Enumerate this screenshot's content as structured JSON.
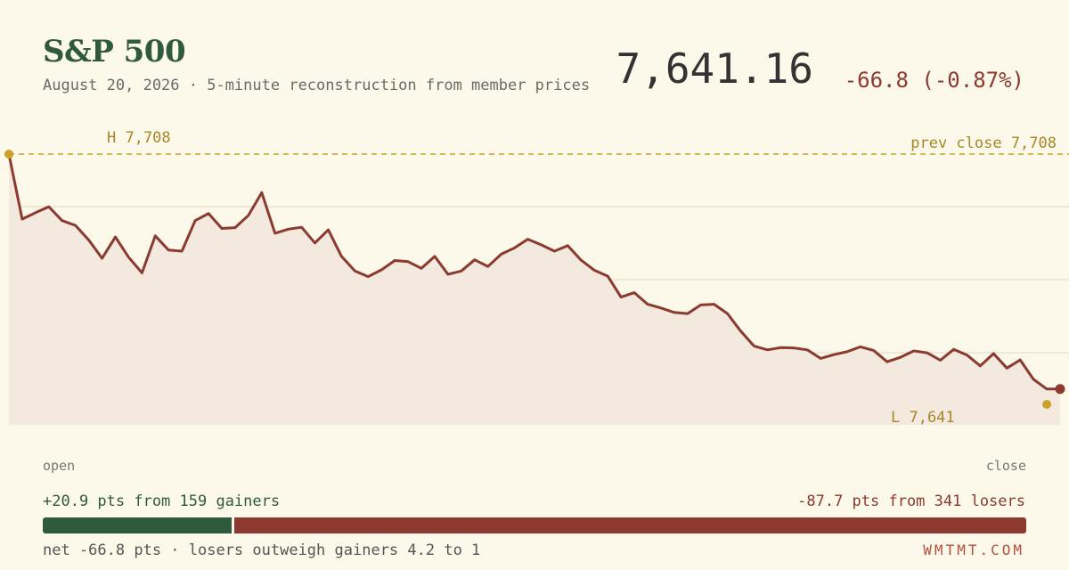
{
  "header": {
    "title": "S&P 500",
    "subtitle": "August 20, 2026 · 5-minute reconstruction from member prices",
    "price": "7,641.16",
    "change": "-66.8 (-0.87%)"
  },
  "chart_data": {
    "type": "line",
    "ylim": [
      7641,
      7708
    ],
    "high_label": "H 7,708",
    "low_label": "L 7,641",
    "prev_close_label": "prev close 7,708",
    "prev_close": 7708,
    "x_start_label": "open",
    "x_end_label": "close",
    "values": [
      7708,
      7690.6,
      7692.3,
      7693.9,
      7690.2,
      7688.9,
      7685,
      7680.1,
      7685.8,
      7680.4,
      7676.2,
      7686.1,
      7682.3,
      7682,
      7690.2,
      7692.1,
      7688.1,
      7688.3,
      7691.6,
      7697.7,
      7686.8,
      7687.9,
      7688.4,
      7684.2,
      7687.7,
      7680.6,
      7676.7,
      7675.2,
      7677,
      7679.5,
      7679.2,
      7677.4,
      7680.6,
      7675.8,
      7676.7,
      7679.7,
      7677.9,
      7681.2,
      7682.9,
      7685.2,
      7683.7,
      7682,
      7683.5,
      7679.6,
      7676.9,
      7675.3,
      7669.7,
      7670.9,
      7667.8,
      7666.8,
      7665.6,
      7665.3,
      7667.6,
      7667.8,
      7665.3,
      7660.6,
      7656.6,
      7655.6,
      7656.2,
      7656.1,
      7655.6,
      7653.3,
      7654.3,
      7655.1,
      7656.4,
      7655.4,
      7652.4,
      7653.6,
      7655.3,
      7654.8,
      7652.8,
      7655.7,
      7654.2,
      7651.3,
      7654.6,
      7650.7,
      7652.9,
      7647.7,
      7645.1,
      7645.1
    ]
  },
  "breadth": {
    "gainers_label": "+20.9 pts from 159 gainers",
    "losers_label": "-87.7 pts from 341 losers",
    "gainer_pts": 20.9,
    "loser_pts": 87.7,
    "net_label": "net -66.8 pts · losers outweigh gainers 4.2 to 1",
    "brand": "WMTMT.COM"
  },
  "colors": {
    "line": "#8c3a2f",
    "fill": "#f3e9de",
    "prev_close": "#c9a227",
    "grid": "#ece3cc",
    "gain": "#2f5a3e",
    "loss": "#8c3a2f"
  }
}
